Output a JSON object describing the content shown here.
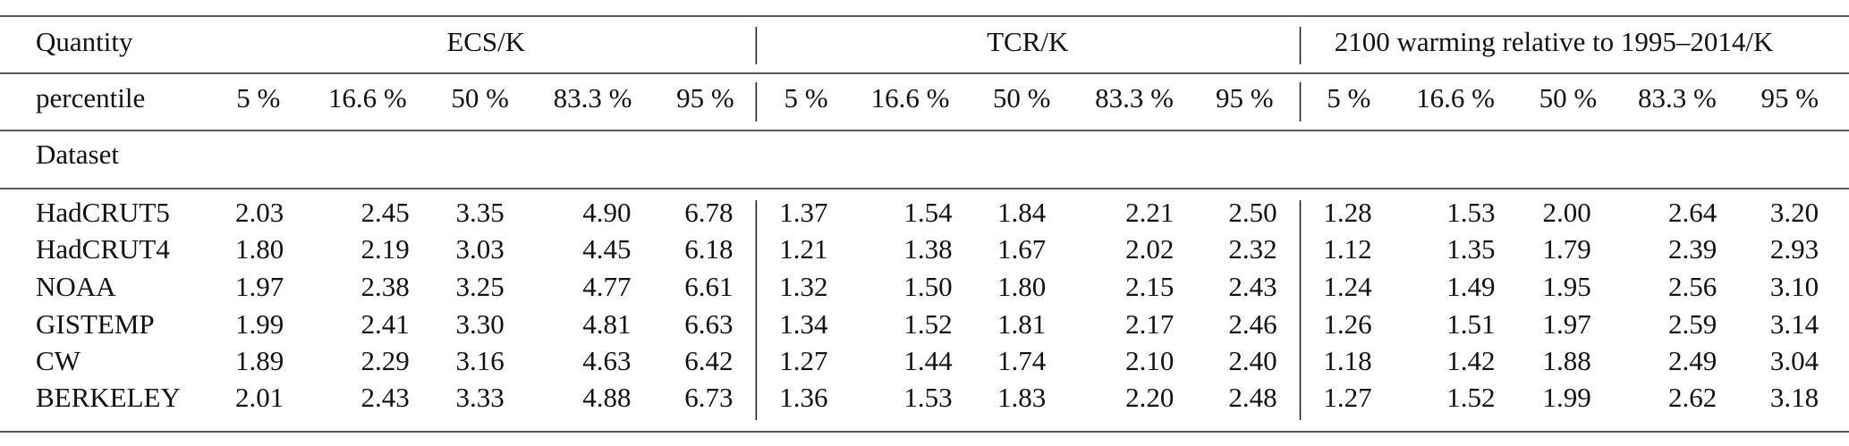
{
  "header": {
    "quantity": "Quantity",
    "groups": [
      "ECS/K",
      "TCR/K",
      "2100 warming relative to 1995–2014/K"
    ]
  },
  "subheader": {
    "label": "percentile",
    "percentiles": [
      "5 %",
      "16.6 %",
      "50 %",
      "83.3 %",
      "95 %",
      "5 %",
      "16.6 %",
      "50 %",
      "83.3 %",
      "95 %",
      "5 %",
      "16.6 %",
      "50 %",
      "83.3 %",
      "95 %"
    ]
  },
  "section": "Dataset",
  "rows": [
    {
      "name": "HadCRUT5",
      "values": [
        "2.03",
        "2.45",
        "3.35",
        "4.90",
        "6.78",
        "1.37",
        "1.54",
        "1.84",
        "2.21",
        "2.50",
        "1.28",
        "1.53",
        "2.00",
        "2.64",
        "3.20"
      ]
    },
    {
      "name": "HadCRUT4",
      "values": [
        "1.80",
        "2.19",
        "3.03",
        "4.45",
        "6.18",
        "1.21",
        "1.38",
        "1.67",
        "2.02",
        "2.32",
        "1.12",
        "1.35",
        "1.79",
        "2.39",
        "2.93"
      ]
    },
    {
      "name": "NOAA",
      "values": [
        "1.97",
        "2.38",
        "3.25",
        "4.77",
        "6.61",
        "1.32",
        "1.50",
        "1.80",
        "2.15",
        "2.43",
        "1.24",
        "1.49",
        "1.95",
        "2.56",
        "3.10"
      ]
    },
    {
      "name": "GISTEMP",
      "values": [
        "1.99",
        "2.41",
        "3.30",
        "4.81",
        "6.63",
        "1.34",
        "1.52",
        "1.81",
        "2.17",
        "2.46",
        "1.26",
        "1.51",
        "1.97",
        "2.59",
        "3.14"
      ]
    },
    {
      "name": "CW",
      "values": [
        "1.89",
        "2.29",
        "3.16",
        "4.63",
        "6.42",
        "1.27",
        "1.44",
        "1.74",
        "2.10",
        "2.40",
        "1.18",
        "1.42",
        "1.88",
        "2.49",
        "3.04"
      ]
    },
    {
      "name": "BERKELEY",
      "values": [
        "2.01",
        "2.43",
        "3.33",
        "4.88",
        "6.73",
        "1.36",
        "1.53",
        "1.83",
        "2.20",
        "2.48",
        "1.27",
        "1.52",
        "1.99",
        "2.62",
        "3.18"
      ]
    }
  ]
}
